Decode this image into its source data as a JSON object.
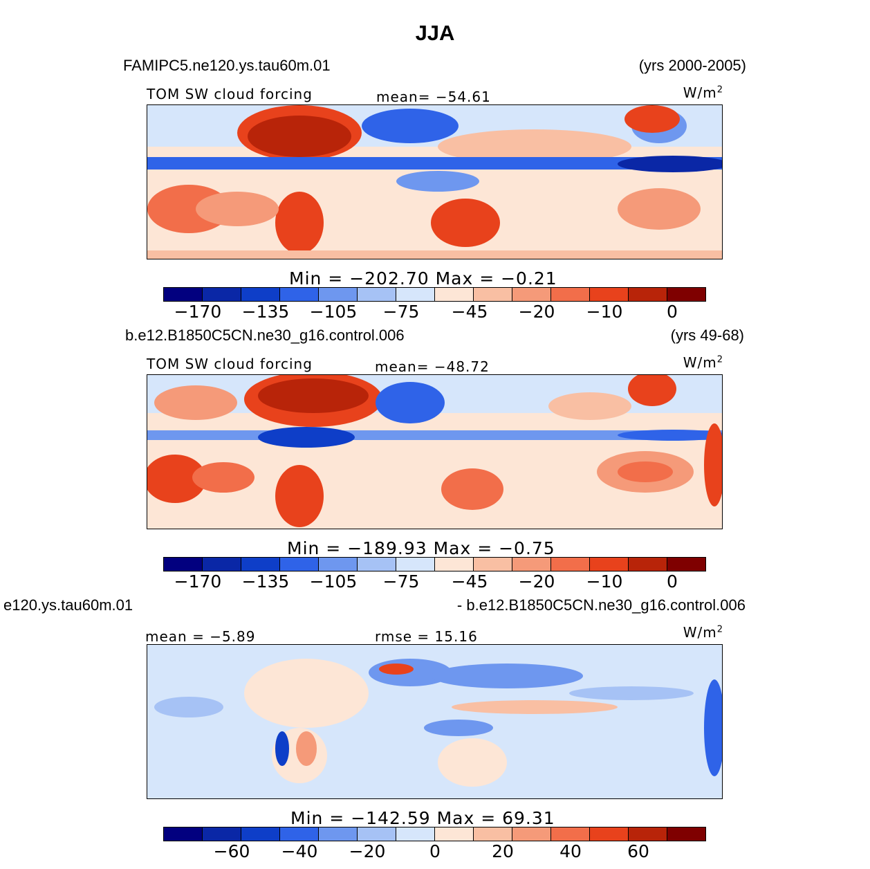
{
  "title": "JJA",
  "colors": [
    "#02007f",
    "#0a27a6",
    "#0e3ec8",
    "#2f63e8",
    "#6e97ef",
    "#a6c2f5",
    "#d6e6fb",
    "#fde6d6",
    "#f9bfa3",
    "#f59a79",
    "#f26e4a",
    "#e8421c",
    "#b82409",
    "#7f0000"
  ],
  "panels": [
    {
      "case_left": "FAMIPC5.ne120.ys.tau60m.01",
      "case_right": "(yrs 2000-2005)",
      "variable": "TOM SW cloud forcing",
      "center_stat": "mean= −54.61",
      "units": "W/m",
      "units_sup": "2",
      "minmax": "Min  =  −202.70  Max  =    −0.21",
      "ticks": [
        "−170",
        "−135",
        "−105",
        "−75",
        "−45",
        "−20",
        "−10",
        "0"
      ]
    },
    {
      "case_left": "b.e12.B1850C5CN.ne30_g16.control.006",
      "case_right": "(yrs 49-68)",
      "variable": "TOM SW cloud forcing",
      "center_stat": "mean= −48.72",
      "units": "W/m",
      "units_sup": "2",
      "minmax": "Min  =  −189.93  Max  =    −0.75",
      "ticks": [
        "−170",
        "−135",
        "−105",
        "−75",
        "−45",
        "−20",
        "−10",
        "0"
      ]
    },
    {
      "case_left": "e120.ys.tau60m.01",
      "case_right": "- b.e12.B1850C5CN.ne30_g16.control.006",
      "left_stat": "mean  =   −5.89",
      "center_stat": "rmse  =   15.16",
      "units": "W/m",
      "units_sup": "2",
      "minmax": "Min  =  −142.59  Max  =   69.31",
      "ticks": [
        "−60",
        "−40",
        "−20",
        "0",
        "20",
        "40",
        "60"
      ]
    }
  ]
}
